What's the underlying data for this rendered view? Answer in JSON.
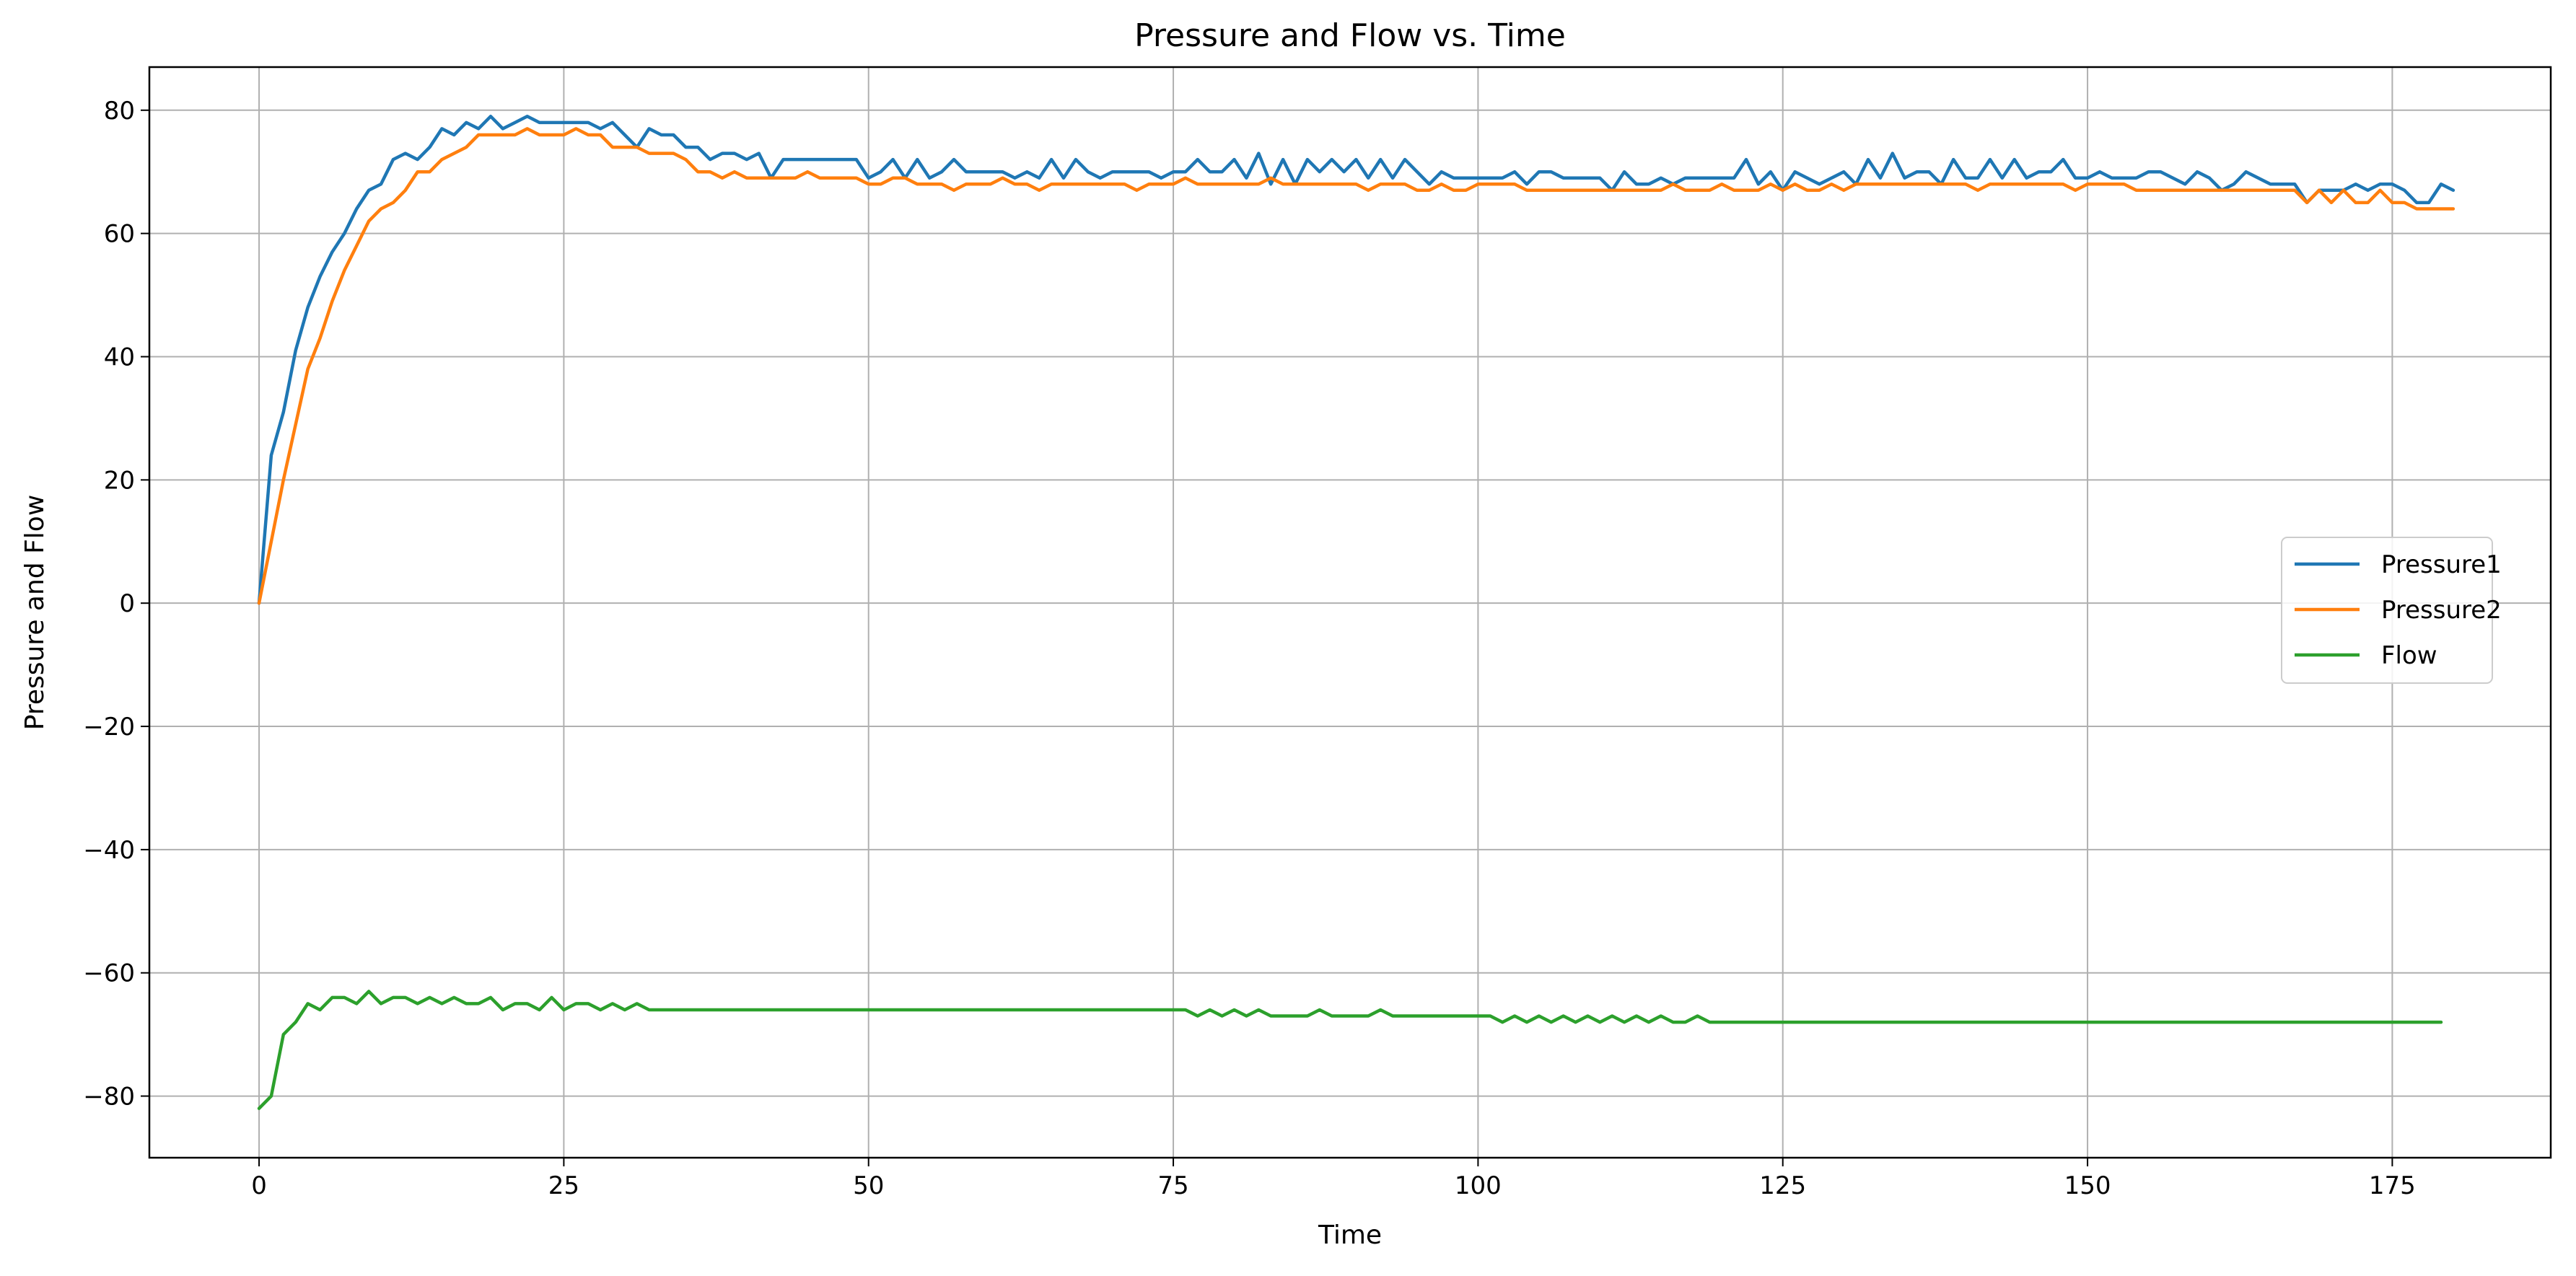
{
  "chart_data": {
    "type": "line",
    "title": "Pressure and Flow vs. Time",
    "xlabel": "Time",
    "ylabel": "Pressure and Flow",
    "xlim": [
      -9,
      188
    ],
    "ylim": [
      -90,
      87
    ],
    "xticks": [
      0,
      25,
      50,
      75,
      100,
      125,
      150,
      175
    ],
    "yticks": [
      -80,
      -60,
      -40,
      -20,
      0,
      20,
      40,
      60,
      80
    ],
    "grid": true,
    "legend_position": "center-right",
    "series": [
      {
        "name": "Pressure1",
        "color": "#1f77b4",
        "x_start": 0,
        "x_step": 1,
        "values": [
          0,
          24,
          31,
          41,
          48,
          53,
          57,
          60,
          64,
          67,
          68,
          72,
          73,
          72,
          74,
          77,
          76,
          78,
          77,
          79,
          77,
          78,
          79,
          78,
          78,
          78,
          78,
          78,
          77,
          78,
          76,
          74,
          77,
          76,
          76,
          74,
          74,
          72,
          73,
          73,
          72,
          73,
          69,
          72,
          72,
          72,
          72,
          72,
          72,
          72,
          69,
          70,
          72,
          69,
          72,
          69,
          70,
          72,
          70,
          70,
          70,
          70,
          69,
          70,
          69,
          72,
          69,
          72,
          70,
          69,
          70,
          70,
          70,
          70,
          69,
          70,
          70,
          72,
          70,
          70,
          72,
          69,
          73,
          68,
          72,
          68,
          72,
          70,
          72,
          70,
          72,
          69,
          72,
          69,
          72,
          70,
          68,
          70,
          69,
          69,
          69,
          69,
          69,
          70,
          68,
          70,
          70,
          69,
          69,
          69,
          69,
          67,
          70,
          68,
          68,
          69,
          68,
          69,
          69,
          69,
          69,
          69,
          72,
          68,
          70,
          67,
          70,
          69,
          68,
          69,
          70,
          68,
          72,
          69,
          73,
          69,
          70,
          70,
          68,
          72,
          69,
          69,
          72,
          69,
          72,
          69,
          70,
          70,
          72,
          69,
          69,
          70,
          69,
          69,
          69,
          70,
          70,
          69,
          68,
          70,
          69,
          67,
          68,
          70,
          69,
          68,
          68,
          68,
          65,
          67,
          67,
          67,
          68,
          67,
          68,
          68,
          67,
          65,
          65,
          68,
          67
        ]
      },
      {
        "name": "Pressure2",
        "color": "#ff7f0e",
        "x_start": 0,
        "x_step": 1,
        "values": [
          0,
          10,
          20,
          29,
          38,
          43,
          49,
          54,
          58,
          62,
          64,
          65,
          67,
          70,
          70,
          72,
          73,
          74,
          76,
          76,
          76,
          76,
          77,
          76,
          76,
          76,
          77,
          76,
          76,
          74,
          74,
          74,
          73,
          73,
          73,
          72,
          70,
          70,
          69,
          70,
          69,
          69,
          69,
          69,
          69,
          70,
          69,
          69,
          69,
          69,
          68,
          68,
          69,
          69,
          68,
          68,
          68,
          67,
          68,
          68,
          68,
          69,
          68,
          68,
          67,
          68,
          68,
          68,
          68,
          68,
          68,
          68,
          67,
          68,
          68,
          68,
          69,
          68,
          68,
          68,
          68,
          68,
          68,
          69,
          68,
          68,
          68,
          68,
          68,
          68,
          68,
          67,
          68,
          68,
          68,
          67,
          67,
          68,
          67,
          67,
          68,
          68,
          68,
          68,
          67,
          67,
          67,
          67,
          67,
          67,
          67,
          67,
          67,
          67,
          67,
          67,
          68,
          67,
          67,
          67,
          68,
          67,
          67,
          67,
          68,
          67,
          68,
          67,
          67,
          68,
          67,
          68,
          68,
          68,
          68,
          68,
          68,
          68,
          68,
          68,
          68,
          67,
          68,
          68,
          68,
          68,
          68,
          68,
          68,
          67,
          68,
          68,
          68,
          68,
          67,
          67,
          67,
          67,
          67,
          67,
          67,
          67,
          67,
          67,
          67,
          67,
          67,
          67,
          65,
          67,
          65,
          67,
          65,
          65,
          67,
          65,
          65,
          64,
          64,
          64,
          64
        ]
      },
      {
        "name": "Flow",
        "color": "#2ca02c",
        "x_start": 0,
        "x_step": 1,
        "values": [
          -82,
          -80,
          -70,
          -68,
          -65,
          -66,
          -64,
          -64,
          -65,
          -63,
          -65,
          -64,
          -64,
          -65,
          -64,
          -65,
          -64,
          -65,
          -65,
          -64,
          -66,
          -65,
          -65,
          -66,
          -64,
          -66,
          -65,
          -65,
          -66,
          -65,
          -66,
          -65,
          -66,
          -66,
          -66,
          -66,
          -66,
          -66,
          -66,
          -66,
          -66,
          -66,
          -66,
          -66,
          -66,
          -66,
          -66,
          -66,
          -66,
          -66,
          -66,
          -66,
          -66,
          -66,
          -66,
          -66,
          -66,
          -66,
          -66,
          -66,
          -66,
          -66,
          -66,
          -66,
          -66,
          -66,
          -66,
          -66,
          -66,
          -66,
          -66,
          -66,
          -66,
          -66,
          -66,
          -66,
          -66,
          -67,
          -66,
          -67,
          -66,
          -67,
          -66,
          -67,
          -67,
          -67,
          -67,
          -66,
          -67,
          -67,
          -67,
          -67,
          -66,
          -67,
          -67,
          -67,
          -67,
          -67,
          -67,
          -67,
          -67,
          -67,
          -68,
          -67,
          -68,
          -67,
          -68,
          -67,
          -68,
          -67,
          -68,
          -67,
          -68,
          -67,
          -68,
          -67,
          -68,
          -68,
          -67,
          -68,
          -68,
          -68,
          -68,
          -68,
          -68,
          -68,
          -68,
          -68,
          -68,
          -68,
          -68,
          -68,
          -68,
          -68,
          -68,
          -68,
          -68,
          -68,
          -68,
          -68,
          -68,
          -68,
          -68,
          -68,
          -68,
          -68,
          -68,
          -68,
          -68,
          -68,
          -68,
          -68,
          -68,
          -68,
          -68,
          -68,
          -68,
          -68,
          -68,
          -68,
          -68,
          -68,
          -68,
          -68,
          -68,
          -68,
          -68,
          -68,
          -68,
          -68,
          -68,
          -68,
          -68,
          -68,
          -68,
          -68,
          -68,
          -68,
          -68,
          -68
        ]
      }
    ]
  }
}
